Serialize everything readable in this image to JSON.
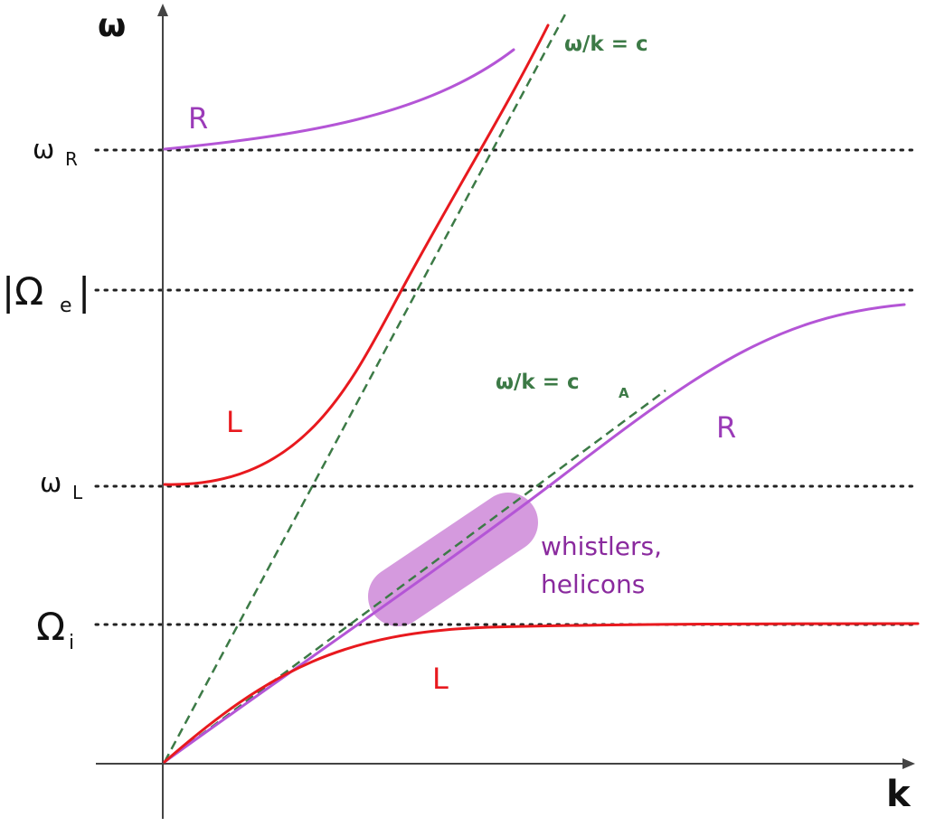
{
  "axes": {
    "x_label": "k",
    "y_label": "ω"
  },
  "levels": {
    "omega_R": {
      "symbol": "ω",
      "sub": "R"
    },
    "abs_Omega_e": {
      "symbol": "|Ω",
      "sub": "e",
      "suffix": "|"
    },
    "omega_L": {
      "symbol": "ω",
      "sub": "L"
    },
    "Omega_i": {
      "symbol": "Ω",
      "sub": "i"
    }
  },
  "curves": {
    "R_upper_label": "R",
    "L_upper_label": "L",
    "R_lower_label": "R",
    "L_lower_label": "L"
  },
  "asymptotes": {
    "light_line": {
      "text": "ω/k = c"
    },
    "alfven_line": {
      "text": "ω/k = c",
      "sub": "A"
    }
  },
  "annotation": {
    "line1": "whistlers,",
    "line2": "helicons"
  },
  "colors": {
    "axis": "#444444",
    "level_line": "#222222",
    "R_mode": "#b455d6",
    "L_mode": "#e8191e",
    "asymptote": "#3c7a46",
    "whistler_region": "#d59ade",
    "annotation_text": "#8a2a9e"
  }
}
